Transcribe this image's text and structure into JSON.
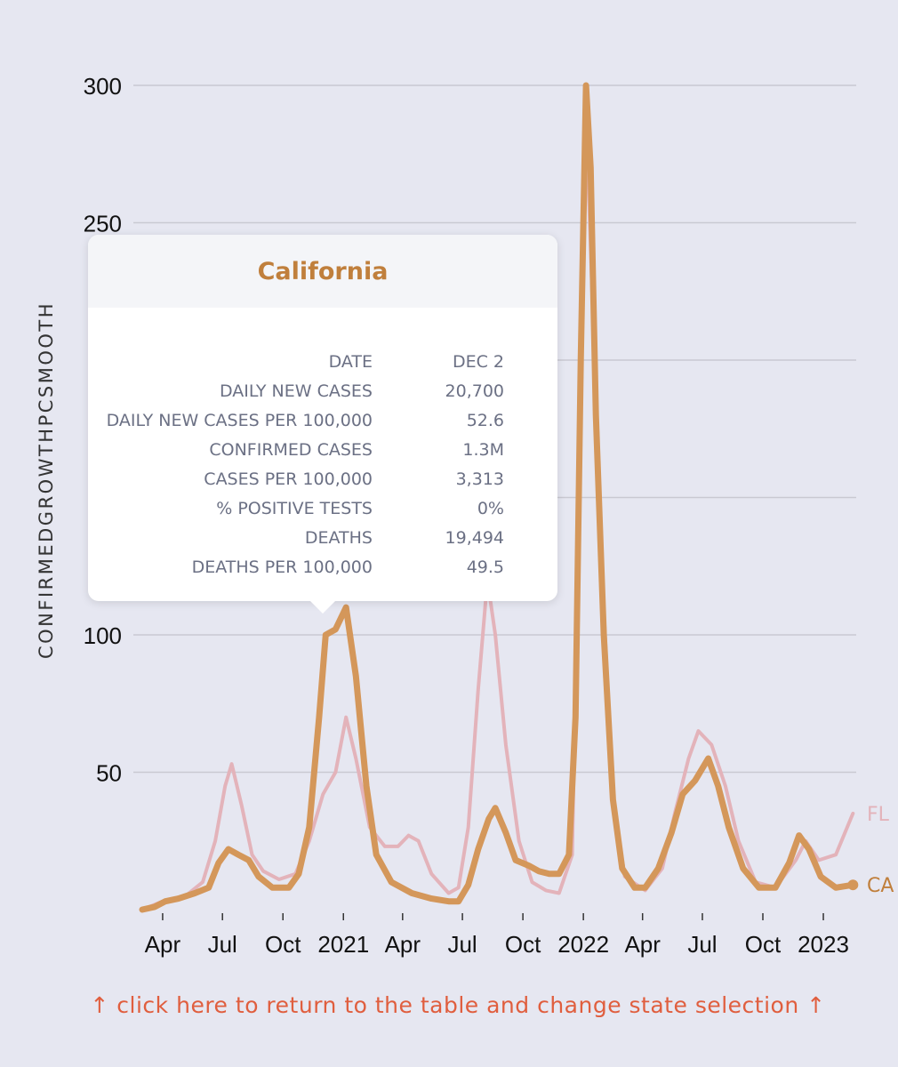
{
  "chart_data": {
    "type": "line",
    "ylabel": "CONFIRMEDGROWTHPCSMOOTH",
    "ylim": [
      0,
      300
    ],
    "yticks": [
      50,
      100,
      250,
      300
    ],
    "x_tick_labels": [
      "Apr",
      "Jul",
      "Oct",
      "2021",
      "Apr",
      "Jul",
      "Oct",
      "2022",
      "Apr",
      "Jul",
      "Oct",
      "2023"
    ],
    "grid": true,
    "series": [
      {
        "name": "CA",
        "color": "#d4975a",
        "points": [
          [
            "2020-03-01",
            0
          ],
          [
            "2020-03-20",
            1
          ],
          [
            "2020-04-05",
            3
          ],
          [
            "2020-04-25",
            4
          ],
          [
            "2020-05-20",
            6
          ],
          [
            "2020-06-10",
            8
          ],
          [
            "2020-06-25",
            17
          ],
          [
            "2020-07-10",
            22
          ],
          [
            "2020-07-25",
            20
          ],
          [
            "2020-08-10",
            18
          ],
          [
            "2020-08-25",
            12
          ],
          [
            "2020-09-15",
            8
          ],
          [
            "2020-10-10",
            8
          ],
          [
            "2020-10-25",
            13
          ],
          [
            "2020-11-10",
            30
          ],
          [
            "2020-11-25",
            70
          ],
          [
            "2020-12-05",
            100
          ],
          [
            "2020-12-20",
            102
          ],
          [
            "2021-01-05",
            110
          ],
          [
            "2021-01-20",
            85
          ],
          [
            "2021-02-05",
            45
          ],
          [
            "2021-02-20",
            20
          ],
          [
            "2021-03-15",
            10
          ],
          [
            "2021-04-15",
            6
          ],
          [
            "2021-05-15",
            4
          ],
          [
            "2021-06-10",
            3
          ],
          [
            "2021-06-25",
            3
          ],
          [
            "2021-07-10",
            9
          ],
          [
            "2021-07-25",
            22
          ],
          [
            "2021-08-10",
            33
          ],
          [
            "2021-08-20",
            37
          ],
          [
            "2021-09-05",
            28
          ],
          [
            "2021-09-20",
            18
          ],
          [
            "2021-10-10",
            16
          ],
          [
            "2021-10-25",
            14
          ],
          [
            "2021-11-10",
            13
          ],
          [
            "2021-11-25",
            13
          ],
          [
            "2021-12-10",
            20
          ],
          [
            "2021-12-20",
            70
          ],
          [
            "2021-12-28",
            200
          ],
          [
            "2022-01-05",
            300
          ],
          [
            "2022-01-12",
            270
          ],
          [
            "2022-01-20",
            180
          ],
          [
            "2022-02-01",
            100
          ],
          [
            "2022-02-15",
            40
          ],
          [
            "2022-03-01",
            15
          ],
          [
            "2022-03-20",
            8
          ],
          [
            "2022-04-05",
            8
          ],
          [
            "2022-04-25",
            15
          ],
          [
            "2022-05-15",
            28
          ],
          [
            "2022-06-01",
            42
          ],
          [
            "2022-06-20",
            47
          ],
          [
            "2022-07-10",
            55
          ],
          [
            "2022-07-25",
            45
          ],
          [
            "2022-08-10",
            30
          ],
          [
            "2022-09-01",
            15
          ],
          [
            "2022-09-25",
            8
          ],
          [
            "2022-10-20",
            8
          ],
          [
            "2022-11-10",
            17
          ],
          [
            "2022-11-25",
            27
          ],
          [
            "2022-12-10",
            22
          ],
          [
            "2022-12-28",
            12
          ],
          [
            "2023-01-20",
            8
          ],
          [
            "2023-02-15",
            9
          ]
        ]
      },
      {
        "name": "FL",
        "color": "#e3b3ba",
        "points": [
          [
            "2020-03-01",
            0
          ],
          [
            "2020-04-01",
            3
          ],
          [
            "2020-05-01",
            4
          ],
          [
            "2020-06-01",
            10
          ],
          [
            "2020-06-20",
            25
          ],
          [
            "2020-07-05",
            45
          ],
          [
            "2020-07-15",
            53
          ],
          [
            "2020-07-30",
            38
          ],
          [
            "2020-08-15",
            20
          ],
          [
            "2020-09-01",
            14
          ],
          [
            "2020-09-25",
            11
          ],
          [
            "2020-10-20",
            13
          ],
          [
            "2020-11-10",
            25
          ],
          [
            "2020-12-01",
            42
          ],
          [
            "2020-12-20",
            50
          ],
          [
            "2021-01-05",
            70
          ],
          [
            "2021-01-20",
            55
          ],
          [
            "2021-02-10",
            30
          ],
          [
            "2021-03-05",
            23
          ],
          [
            "2021-03-25",
            23
          ],
          [
            "2021-04-10",
            27
          ],
          [
            "2021-04-25",
            25
          ],
          [
            "2021-05-15",
            13
          ],
          [
            "2021-06-10",
            6
          ],
          [
            "2021-06-25",
            8
          ],
          [
            "2021-07-10",
            30
          ],
          [
            "2021-07-25",
            80
          ],
          [
            "2021-08-08",
            120
          ],
          [
            "2021-08-20",
            100
          ],
          [
            "2021-09-05",
            60
          ],
          [
            "2021-09-25",
            25
          ],
          [
            "2021-10-15",
            10
          ],
          [
            "2021-11-05",
            7
          ],
          [
            "2021-11-25",
            6
          ],
          [
            "2021-12-15",
            20
          ],
          [
            "2021-12-25",
            150
          ],
          [
            "2022-01-05",
            290
          ],
          [
            "2022-01-15",
            220
          ],
          [
            "2022-01-30",
            120
          ],
          [
            "2022-02-15",
            40
          ],
          [
            "2022-03-05",
            12
          ],
          [
            "2022-04-05",
            7
          ],
          [
            "2022-05-01",
            15
          ],
          [
            "2022-05-20",
            35
          ],
          [
            "2022-06-10",
            55
          ],
          [
            "2022-06-25",
            65
          ],
          [
            "2022-07-15",
            60
          ],
          [
            "2022-08-05",
            45
          ],
          [
            "2022-08-25",
            25
          ],
          [
            "2022-09-20",
            10
          ],
          [
            "2022-10-20",
            8
          ],
          [
            "2022-11-20",
            18
          ],
          [
            "2022-12-05",
            25
          ],
          [
            "2022-12-25",
            18
          ],
          [
            "2023-01-20",
            20
          ],
          [
            "2023-02-15",
            35
          ]
        ]
      }
    ]
  },
  "tooltip": {
    "title": "California",
    "rows": [
      {
        "label": "DATE",
        "value": "DEC 2"
      },
      {
        "label": "DAILY NEW CASES",
        "value": "20,700"
      },
      {
        "label": "DAILY NEW CASES PER 100,000",
        "value": "52.6"
      },
      {
        "label": "CONFIRMED CASES",
        "value": "1.3M"
      },
      {
        "label": "CASES PER 100,000",
        "value": "3,313"
      },
      {
        "label": "% POSITIVE TESTS",
        "value": "0%"
      },
      {
        "label": "DEATHS",
        "value": "19,494"
      },
      {
        "label": "DEATHS PER 100,000",
        "value": "49.5"
      }
    ]
  },
  "footer": {
    "link_text": "↑ click here to return to the table and change state selection ↑"
  }
}
